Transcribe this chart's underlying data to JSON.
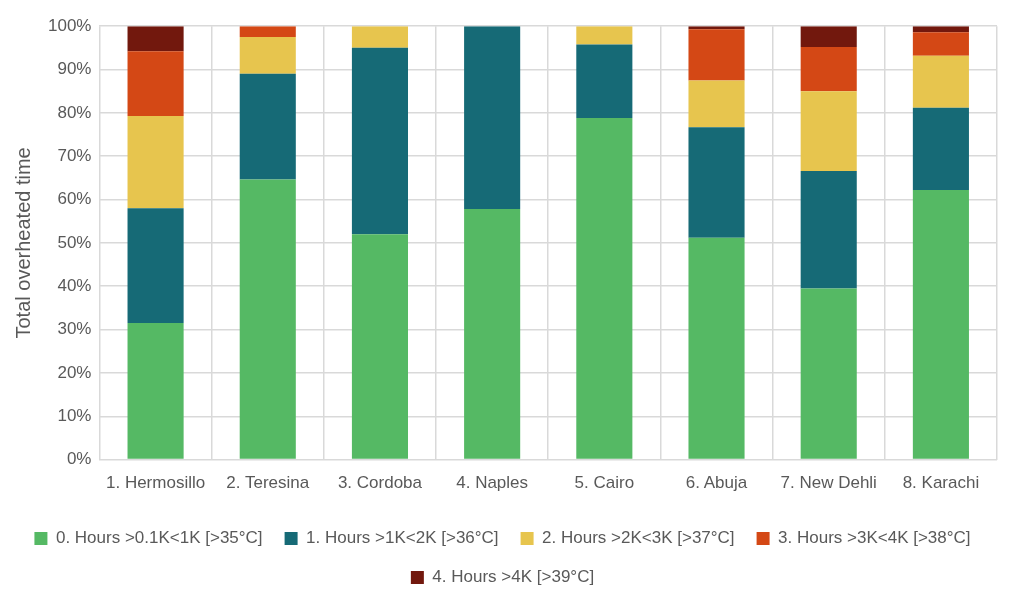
{
  "chart_data": {
    "type": "bar",
    "stacked": true,
    "ylabel": "Total overheated time",
    "categories": [
      "1. Hermosillo",
      "2. Teresina",
      "3. Cordoba",
      "4. Naples",
      "5. Cairo",
      "6. Abuja",
      "7. New Dehli",
      "8. Karachi"
    ],
    "series": [
      {
        "name": "0. Hours >0.1K<1K [>35°C]",
        "color": "#55b964",
        "values": [
          31.5,
          64.6,
          52.0,
          57.8,
          78.8,
          51.2,
          39.5,
          62.2
        ]
      },
      {
        "name": "1. Hours >1K<2K [>36°C]",
        "color": "#166a76",
        "values": [
          26.5,
          24.4,
          43.0,
          42.2,
          17.0,
          25.5,
          27.1,
          19.0
        ]
      },
      {
        "name": "2. Hours >2K<3K [>37°C]",
        "color": "#e7c54e",
        "values": [
          21.3,
          8.5,
          5.0,
          0,
          4.2,
          10.8,
          18.4,
          12.0
        ]
      },
      {
        "name": "3. Hours >3K<4K [>38°C]",
        "color": "#d44815",
        "values": [
          14.9,
          2.5,
          0,
          0,
          0,
          11.8,
          10.2,
          5.4
        ]
      },
      {
        "name": "4. Hours >4K [>39°C]",
        "color": "#72180d",
        "values": [
          5.8,
          0,
          0,
          0,
          0,
          0.7,
          4.8,
          1.4
        ]
      }
    ],
    "ylim": [
      0,
      100
    ],
    "yticks": [
      {
        "value": 0,
        "label": "0%"
      },
      {
        "value": 10,
        "label": "10%"
      },
      {
        "value": 20,
        "label": "20%"
      },
      {
        "value": 30,
        "label": "30%"
      },
      {
        "value": 40,
        "label": "40%"
      },
      {
        "value": 50,
        "label": "50%"
      },
      {
        "value": 60,
        "label": "60%"
      },
      {
        "value": 70,
        "label": "70%"
      },
      {
        "value": 80,
        "label": "80%"
      },
      {
        "value": 90,
        "label": "90%"
      },
      {
        "value": 100,
        "label": "100%"
      }
    ],
    "grid": true,
    "legend": "bottom"
  }
}
